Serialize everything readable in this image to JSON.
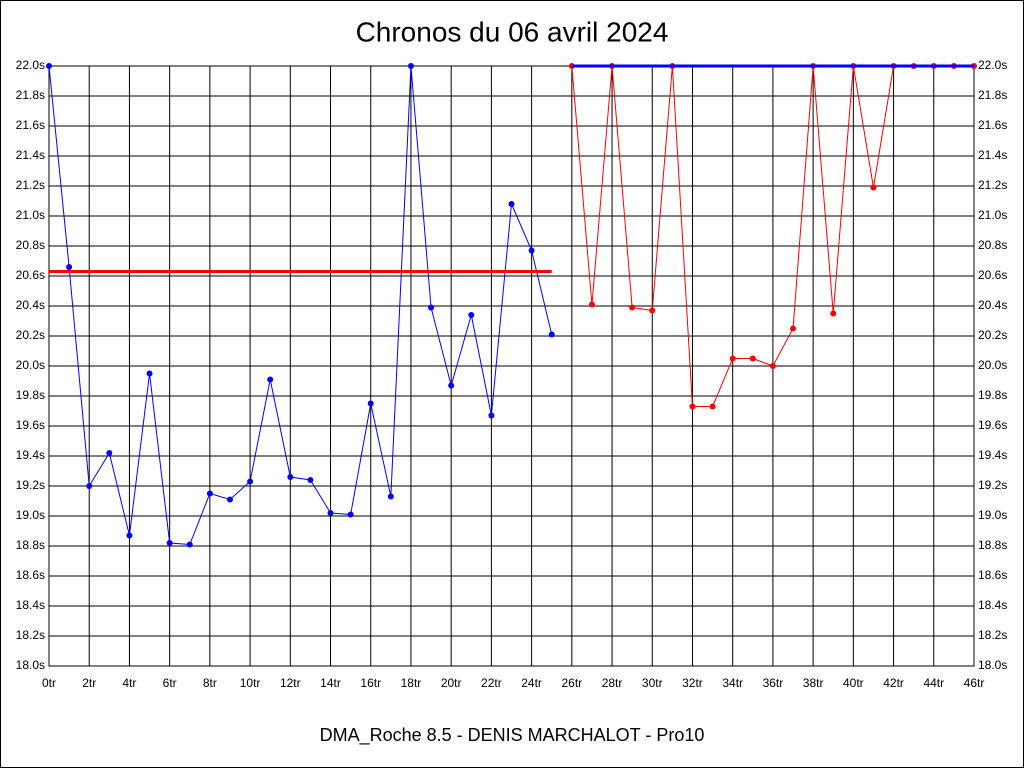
{
  "chart_data": {
    "type": "line",
    "title": "Chronos du 06 avril 2024",
    "footer": "DMA_Roche 8.5 - DENIS MARCHALOT - Pro10",
    "xlim": [
      0,
      46
    ],
    "ylim": [
      18.0,
      22.0
    ],
    "grid": true,
    "right_axis": true,
    "xticks": [
      {
        "value": 0,
        "label": "0tr"
      },
      {
        "value": 2,
        "label": "2tr"
      },
      {
        "value": 4,
        "label": "4tr"
      },
      {
        "value": 6,
        "label": "6tr"
      },
      {
        "value": 8,
        "label": "8tr"
      },
      {
        "value": 10,
        "label": "10tr"
      },
      {
        "value": 12,
        "label": "12tr"
      },
      {
        "value": 14,
        "label": "14tr"
      },
      {
        "value": 16,
        "label": "16tr"
      },
      {
        "value": 18,
        "label": "18tr"
      },
      {
        "value": 20,
        "label": "20tr"
      },
      {
        "value": 22,
        "label": "22tr"
      },
      {
        "value": 24,
        "label": "24tr"
      },
      {
        "value": 26,
        "label": "26tr"
      },
      {
        "value": 28,
        "label": "28tr"
      },
      {
        "value": 30,
        "label": "30tr"
      },
      {
        "value": 32,
        "label": "32tr"
      },
      {
        "value": 34,
        "label": "34tr"
      },
      {
        "value": 36,
        "label": "36tr"
      },
      {
        "value": 38,
        "label": "38tr"
      },
      {
        "value": 40,
        "label": "40tr"
      },
      {
        "value": 42,
        "label": "42tr"
      },
      {
        "value": 44,
        "label": "44tr"
      },
      {
        "value": 46,
        "label": "46tr"
      }
    ],
    "yticks": [
      {
        "value": 18.0,
        "label": "18.0s"
      },
      {
        "value": 18.2,
        "label": "18.2s"
      },
      {
        "value": 18.4,
        "label": "18.4s"
      },
      {
        "value": 18.6,
        "label": "18.6s"
      },
      {
        "value": 18.8,
        "label": "18.8s"
      },
      {
        "value": 19.0,
        "label": "19.0s"
      },
      {
        "value": 19.2,
        "label": "19.2s"
      },
      {
        "value": 19.4,
        "label": "19.4s"
      },
      {
        "value": 19.6,
        "label": "19.6s"
      },
      {
        "value": 19.8,
        "label": "19.8s"
      },
      {
        "value": 20.0,
        "label": "20.0s"
      },
      {
        "value": 20.2,
        "label": "20.2s"
      },
      {
        "value": 20.4,
        "label": "20.4s"
      },
      {
        "value": 20.6,
        "label": "20.6s"
      },
      {
        "value": 20.8,
        "label": "20.8s"
      },
      {
        "value": 21.0,
        "label": "21.0s"
      },
      {
        "value": 21.2,
        "label": "21.2s"
      },
      {
        "value": 21.4,
        "label": "21.4s"
      },
      {
        "value": 21.6,
        "label": "21.6s"
      },
      {
        "value": 21.8,
        "label": "21.8s"
      },
      {
        "value": 22.0,
        "label": "22.0s"
      }
    ],
    "series": [
      {
        "color": "#0000ff",
        "markers": true,
        "width": 1,
        "x": [
          0,
          1,
          2,
          3,
          4,
          5,
          6,
          7,
          8,
          9,
          10,
          11,
          12,
          13,
          14,
          15,
          16,
          17,
          18,
          19,
          20,
          21,
          22,
          23,
          24,
          25
        ],
        "values": [
          22.0,
          20.66,
          19.2,
          19.42,
          18.87,
          19.95,
          18.82,
          18.81,
          19.15,
          19.11,
          19.23,
          19.91,
          19.26,
          19.24,
          19.02,
          19.01,
          19.75,
          19.13,
          22.0,
          20.39,
          19.87,
          20.34,
          19.67,
          21.08,
          20.77,
          20.21
        ]
      },
      {
        "color": "#ff0000",
        "markers": true,
        "width": 1,
        "x": [
          26,
          27,
          28,
          29,
          30,
          31,
          32,
          33,
          34,
          35,
          36,
          37,
          38,
          39,
          40,
          41,
          42,
          43,
          44,
          45,
          46
        ],
        "values": [
          22.0,
          20.41,
          22.0,
          20.39,
          20.37,
          22.0,
          19.73,
          19.73,
          20.05,
          20.05,
          20.0,
          20.25,
          22.0,
          20.35,
          22.0,
          21.19,
          22.0,
          22.0,
          22.0,
          22.0,
          22.0
        ]
      },
      {
        "color": "#ff0000",
        "markers": false,
        "width": 3,
        "x": [
          0,
          25
        ],
        "values": [
          20.63,
          20.63
        ]
      },
      {
        "color": "#0000ff",
        "markers": false,
        "width": 3,
        "x": [
          26,
          46
        ],
        "values": [
          22.0,
          22.0
        ]
      }
    ]
  }
}
